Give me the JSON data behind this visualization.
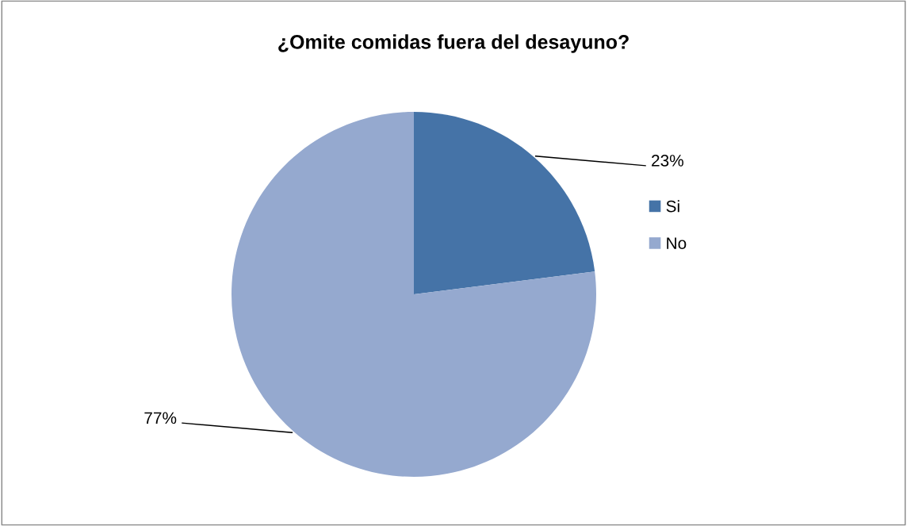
{
  "chart_data": {
    "type": "pie",
    "title": "¿Omite comidas fuera del desayuno?",
    "categories": [
      "Si",
      "No"
    ],
    "values": [
      23,
      77
    ],
    "colors": [
      "#4573a7",
      "#95a9cf"
    ],
    "value_labels": [
      "23%",
      "77%"
    ],
    "legend": "right"
  }
}
